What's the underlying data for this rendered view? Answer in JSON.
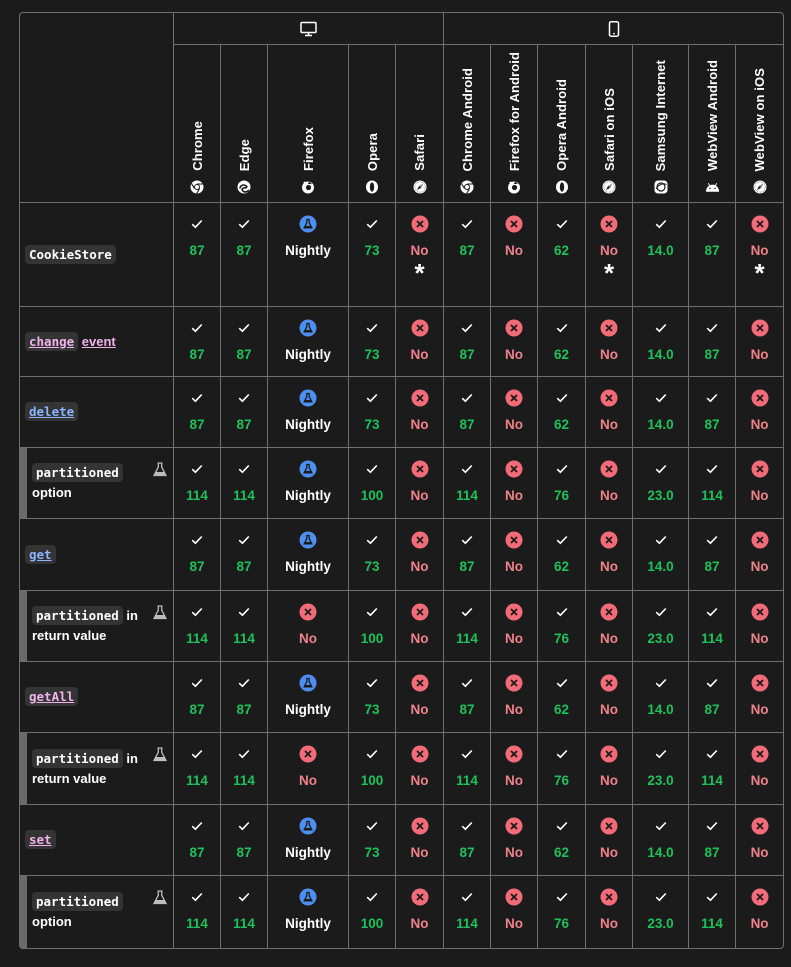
{
  "platforms": [
    {
      "name": "desktop",
      "icon": "desktop-icon",
      "span": 5
    },
    {
      "name": "mobile",
      "icon": "mobile-icon",
      "span": 7
    }
  ],
  "browsers": [
    {
      "name": "Chrome",
      "icon": "chrome-icon"
    },
    {
      "name": "Edge",
      "icon": "edge-icon"
    },
    {
      "name": "Firefox",
      "icon": "firefox-icon"
    },
    {
      "name": "Opera",
      "icon": "opera-icon"
    },
    {
      "name": "Safari",
      "icon": "safari-icon"
    },
    {
      "name": "Chrome Android",
      "icon": "chrome-icon"
    },
    {
      "name": "Firefox for Android",
      "icon": "firefox-icon"
    },
    {
      "name": "Opera Android",
      "icon": "opera-icon"
    },
    {
      "name": "Safari on iOS",
      "icon": "safari-icon"
    },
    {
      "name": "Samsung Internet",
      "icon": "samsung-internet-icon"
    },
    {
      "name": "WebView Android",
      "icon": "android-icon"
    },
    {
      "name": "WebView on iOS",
      "icon": "safari-icon"
    }
  ],
  "colors": {
    "yes": "#1ec15a",
    "no": "#f0828a",
    "no_badge": "#f26b78",
    "preview_badge": "#4d8ff0",
    "border": "#707070",
    "background": "#1b1b1b"
  },
  "rows": [
    {
      "feature": {
        "code": "CookieStore",
        "style": "plain",
        "text": "",
        "sub": false,
        "experimental": false
      },
      "cells": [
        {
          "status": "yes",
          "label": "87"
        },
        {
          "status": "yes",
          "label": "87"
        },
        {
          "status": "preview",
          "label": "Nightly"
        },
        {
          "status": "yes",
          "label": "73"
        },
        {
          "status": "no",
          "label": "No",
          "note": "*"
        },
        {
          "status": "yes",
          "label": "87"
        },
        {
          "status": "no",
          "label": "No"
        },
        {
          "status": "yes",
          "label": "62"
        },
        {
          "status": "no",
          "label": "No",
          "note": "*"
        },
        {
          "status": "yes",
          "label": "14.0"
        },
        {
          "status": "yes",
          "label": "87"
        },
        {
          "status": "no",
          "label": "No",
          "note": "*"
        }
      ]
    },
    {
      "feature": {
        "code": "change",
        "style": "link-pink",
        "text": "event",
        "sub": false,
        "experimental": false
      },
      "cells": [
        {
          "status": "yes",
          "label": "87"
        },
        {
          "status": "yes",
          "label": "87"
        },
        {
          "status": "preview",
          "label": "Nightly"
        },
        {
          "status": "yes",
          "label": "73"
        },
        {
          "status": "no",
          "label": "No"
        },
        {
          "status": "yes",
          "label": "87"
        },
        {
          "status": "no",
          "label": "No"
        },
        {
          "status": "yes",
          "label": "62"
        },
        {
          "status": "no",
          "label": "No"
        },
        {
          "status": "yes",
          "label": "14.0"
        },
        {
          "status": "yes",
          "label": "87"
        },
        {
          "status": "no",
          "label": "No"
        }
      ]
    },
    {
      "feature": {
        "code": "delete",
        "style": "link-blue",
        "text": "",
        "sub": false,
        "experimental": false
      },
      "cells": [
        {
          "status": "yes",
          "label": "87"
        },
        {
          "status": "yes",
          "label": "87"
        },
        {
          "status": "preview",
          "label": "Nightly"
        },
        {
          "status": "yes",
          "label": "73"
        },
        {
          "status": "no",
          "label": "No"
        },
        {
          "status": "yes",
          "label": "87"
        },
        {
          "status": "no",
          "label": "No"
        },
        {
          "status": "yes",
          "label": "62"
        },
        {
          "status": "no",
          "label": "No"
        },
        {
          "status": "yes",
          "label": "14.0"
        },
        {
          "status": "yes",
          "label": "87"
        },
        {
          "status": "no",
          "label": "No"
        }
      ]
    },
    {
      "feature": {
        "code": "partitioned",
        "style": "plain",
        "text": "option",
        "sub": true,
        "experimental": true
      },
      "cells": [
        {
          "status": "yes",
          "label": "114"
        },
        {
          "status": "yes",
          "label": "114"
        },
        {
          "status": "preview",
          "label": "Nightly"
        },
        {
          "status": "yes",
          "label": "100"
        },
        {
          "status": "no",
          "label": "No"
        },
        {
          "status": "yes",
          "label": "114"
        },
        {
          "status": "no",
          "label": "No"
        },
        {
          "status": "yes",
          "label": "76"
        },
        {
          "status": "no",
          "label": "No"
        },
        {
          "status": "yes",
          "label": "23.0"
        },
        {
          "status": "yes",
          "label": "114"
        },
        {
          "status": "no",
          "label": "No"
        }
      ]
    },
    {
      "feature": {
        "code": "get",
        "style": "link-blue",
        "text": "",
        "sub": false,
        "experimental": false
      },
      "cells": [
        {
          "status": "yes",
          "label": "87"
        },
        {
          "status": "yes",
          "label": "87"
        },
        {
          "status": "preview",
          "label": "Nightly"
        },
        {
          "status": "yes",
          "label": "73"
        },
        {
          "status": "no",
          "label": "No"
        },
        {
          "status": "yes",
          "label": "87"
        },
        {
          "status": "no",
          "label": "No"
        },
        {
          "status": "yes",
          "label": "62"
        },
        {
          "status": "no",
          "label": "No"
        },
        {
          "status": "yes",
          "label": "14.0"
        },
        {
          "status": "yes",
          "label": "87"
        },
        {
          "status": "no",
          "label": "No"
        }
      ]
    },
    {
      "feature": {
        "code": "partitioned",
        "style": "plain",
        "text": "in return value",
        "sub": true,
        "experimental": true
      },
      "cells": [
        {
          "status": "yes",
          "label": "114"
        },
        {
          "status": "yes",
          "label": "114"
        },
        {
          "status": "no",
          "label": "No"
        },
        {
          "status": "yes",
          "label": "100"
        },
        {
          "status": "no",
          "label": "No"
        },
        {
          "status": "yes",
          "label": "114"
        },
        {
          "status": "no",
          "label": "No"
        },
        {
          "status": "yes",
          "label": "76"
        },
        {
          "status": "no",
          "label": "No"
        },
        {
          "status": "yes",
          "label": "23.0"
        },
        {
          "status": "yes",
          "label": "114"
        },
        {
          "status": "no",
          "label": "No"
        }
      ]
    },
    {
      "feature": {
        "code": "getAll",
        "style": "link-pink",
        "text": "",
        "sub": false,
        "experimental": false
      },
      "cells": [
        {
          "status": "yes",
          "label": "87"
        },
        {
          "status": "yes",
          "label": "87"
        },
        {
          "status": "preview",
          "label": "Nightly"
        },
        {
          "status": "yes",
          "label": "73"
        },
        {
          "status": "no",
          "label": "No"
        },
        {
          "status": "yes",
          "label": "87"
        },
        {
          "status": "no",
          "label": "No"
        },
        {
          "status": "yes",
          "label": "62"
        },
        {
          "status": "no",
          "label": "No"
        },
        {
          "status": "yes",
          "label": "14.0"
        },
        {
          "status": "yes",
          "label": "87"
        },
        {
          "status": "no",
          "label": "No"
        }
      ]
    },
    {
      "feature": {
        "code": "partitioned",
        "style": "plain",
        "text": "in return value",
        "sub": true,
        "experimental": true
      },
      "cells": [
        {
          "status": "yes",
          "label": "114"
        },
        {
          "status": "yes",
          "label": "114"
        },
        {
          "status": "no",
          "label": "No"
        },
        {
          "status": "yes",
          "label": "100"
        },
        {
          "status": "no",
          "label": "No"
        },
        {
          "status": "yes",
          "label": "114"
        },
        {
          "status": "no",
          "label": "No"
        },
        {
          "status": "yes",
          "label": "76"
        },
        {
          "status": "no",
          "label": "No"
        },
        {
          "status": "yes",
          "label": "23.0"
        },
        {
          "status": "yes",
          "label": "114"
        },
        {
          "status": "no",
          "label": "No"
        }
      ]
    },
    {
      "feature": {
        "code": "set",
        "style": "link-pink",
        "text": "",
        "sub": false,
        "experimental": false
      },
      "cells": [
        {
          "status": "yes",
          "label": "87"
        },
        {
          "status": "yes",
          "label": "87"
        },
        {
          "status": "preview",
          "label": "Nightly"
        },
        {
          "status": "yes",
          "label": "73"
        },
        {
          "status": "no",
          "label": "No"
        },
        {
          "status": "yes",
          "label": "87"
        },
        {
          "status": "no",
          "label": "No"
        },
        {
          "status": "yes",
          "label": "62"
        },
        {
          "status": "no",
          "label": "No"
        },
        {
          "status": "yes",
          "label": "14.0"
        },
        {
          "status": "yes",
          "label": "87"
        },
        {
          "status": "no",
          "label": "No"
        }
      ]
    },
    {
      "feature": {
        "code": "partitioned",
        "style": "plain",
        "text": "option",
        "sub": true,
        "experimental": true
      },
      "cells": [
        {
          "status": "yes",
          "label": "114"
        },
        {
          "status": "yes",
          "label": "114"
        },
        {
          "status": "preview",
          "label": "Nightly"
        },
        {
          "status": "yes",
          "label": "100"
        },
        {
          "status": "no",
          "label": "No"
        },
        {
          "status": "yes",
          "label": "114"
        },
        {
          "status": "no",
          "label": "No"
        },
        {
          "status": "yes",
          "label": "76"
        },
        {
          "status": "no",
          "label": "No"
        },
        {
          "status": "yes",
          "label": "23.0"
        },
        {
          "status": "yes",
          "label": "114"
        },
        {
          "status": "no",
          "label": "No"
        }
      ]
    }
  ]
}
